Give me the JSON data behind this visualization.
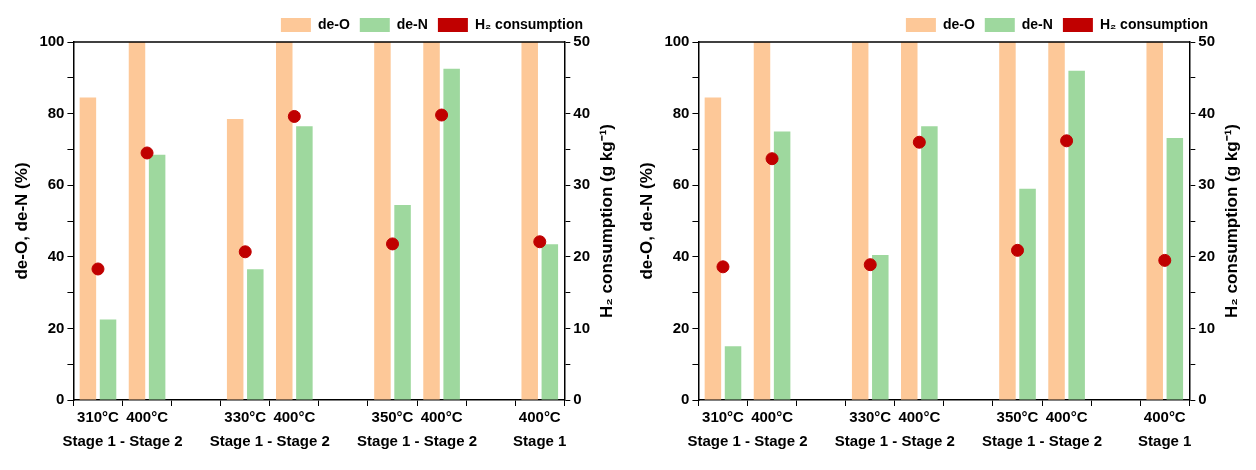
{
  "chart_data": [
    {
      "type": "bar",
      "categories": [
        "310°C",
        "400°C",
        null,
        "330°C",
        "400°C",
        null,
        "350°C",
        "400°C",
        null,
        "400°C"
      ],
      "ylabel": "de-O, de-N (%)",
      "y2label": "H₂ consumption (g kg⁻¹)",
      "ylim": [
        0,
        100
      ],
      "yticks": [
        0,
        {
          "value": 10,
          "label": null
        },
        20,
        {
          "value": 30,
          "label": null
        },
        40,
        {
          "value": 50,
          "label": null
        },
        60,
        {
          "value": 70,
          "label": null
        },
        80,
        {
          "value": 90,
          "label": null
        },
        100
      ],
      "y2lim": [
        0,
        50
      ],
      "y2ticks": [
        0,
        {
          "value": 5,
          "label": null
        },
        10,
        {
          "value": 15,
          "label": null
        },
        20,
        {
          "value": 25,
          "label": null
        },
        30,
        {
          "value": 35,
          "label": null
        },
        40,
        {
          "value": 45,
          "label": null
        },
        50
      ],
      "grid": false,
      "legend": "top right",
      "annotations": [
        "Stage 1 - Stage 2",
        "Stage 1 - Stage 2",
        "Stage 1 - Stage 2",
        "Stage 1"
      ],
      "series": [
        {
          "name": "de-O",
          "color": "#fdc898",
          "values": [
            84.5,
            100,
            null,
            78.5,
            100,
            null,
            100,
            100,
            null,
            100
          ]
        },
        {
          "name": "de-N",
          "color": "#9ed89e",
          "values": [
            22.5,
            68.5,
            null,
            36.5,
            76.5,
            null,
            54.5,
            92.5,
            null,
            43.5
          ]
        },
        {
          "name": "H₂ consumption",
          "type": "scatter",
          "axis": "y2",
          "marker": "circle",
          "color": "#c00000",
          "values": [
            18.3,
            34.5,
            null,
            20.7,
            39.6,
            null,
            21.8,
            39.8,
            null,
            22.1
          ]
        }
      ]
    },
    {
      "type": "bar",
      "categories": [
        "310°C",
        "400°C",
        null,
        "330°C",
        "400°C",
        null,
        "350°C",
        "400°C",
        null,
        "400°C"
      ],
      "ylabel": "de-O, de-N (%)",
      "y2label": "H₂ consumption (g kg⁻¹)",
      "ylim": [
        0,
        100
      ],
      "yticks": [
        0,
        {
          "value": 10,
          "label": null
        },
        20,
        {
          "value": 30,
          "label": null
        },
        40,
        {
          "value": 50,
          "label": null
        },
        60,
        {
          "value": 70,
          "label": null
        },
        80,
        {
          "value": 90,
          "label": null
        },
        100
      ],
      "y2lim": [
        0,
        50
      ],
      "y2ticks": [
        0,
        {
          "value": 5,
          "label": null
        },
        10,
        {
          "value": 15,
          "label": null
        },
        20,
        {
          "value": 25,
          "label": null
        },
        30,
        {
          "value": 35,
          "label": null
        },
        40,
        {
          "value": 45,
          "label": null
        },
        50
      ],
      "grid": false,
      "legend": "top right",
      "annotations": [
        "Stage 1 - Stage 2",
        "Stage 1 - Stage 2",
        "Stage 1 - Stage 2",
        "Stage 1"
      ],
      "series": [
        {
          "name": "de-O",
          "color": "#fdc898",
          "values": [
            84.5,
            100,
            null,
            100,
            100,
            null,
            100,
            100,
            null,
            100
          ]
        },
        {
          "name": "de-N",
          "color": "#9ed89e",
          "values": [
            15,
            75,
            null,
            40.5,
            76.5,
            null,
            59,
            92,
            null,
            73.2
          ]
        },
        {
          "name": "H₂ consumption",
          "type": "scatter",
          "axis": "y2",
          "marker": "circle",
          "color": "#c00000",
          "values": [
            18.6,
            33.7,
            null,
            18.9,
            36,
            null,
            20.9,
            36.2,
            null,
            19.5
          ]
        }
      ]
    }
  ]
}
